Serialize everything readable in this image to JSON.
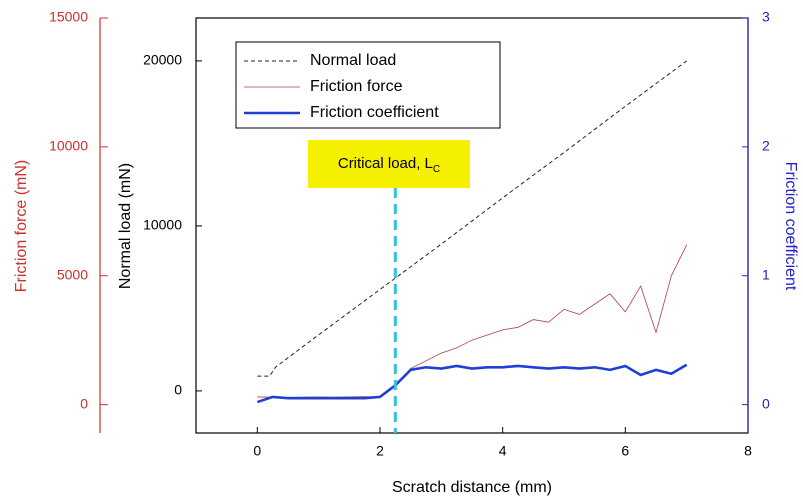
{
  "chart_data": {
    "type": "line",
    "xlabel": "Scratch distance (mm)",
    "ylabel": "Normal load (mN)",
    "y2label": "Friction force (mN)",
    "y3label": "Friction coefficient",
    "xlim": [
      -1,
      8
    ],
    "xticks": [
      0,
      2,
      4,
      6,
      8
    ],
    "ylim": [
      -2550,
      22600
    ],
    "yticks": [
      0,
      10000,
      20000
    ],
    "y2lim": [
      -1100,
      15000
    ],
    "y2ticks": [
      0,
      5000,
      10000,
      15000
    ],
    "y3lim": [
      -0.22,
      3
    ],
    "y3ticks": [
      0,
      1,
      2,
      3
    ],
    "series": [
      {
        "name": "Normal load",
        "color": "#222222",
        "axis": "y",
        "dash": true,
        "x": [
          0,
          0.2,
          0.3,
          1,
          2,
          3,
          4,
          5,
          6,
          7
        ],
        "values": [
          900,
          900,
          1450,
          3400,
          6150,
          8900,
          11700,
          14450,
          17250,
          20000
        ]
      },
      {
        "name": "Friction force",
        "color": "#b0413e",
        "axis": "y2",
        "dash": false,
        "x": [
          0,
          0.25,
          0.5,
          0.75,
          1,
          1.25,
          1.5,
          1.75,
          2,
          2.25,
          2.5,
          2.75,
          3,
          3.25,
          3.5,
          3.75,
          4,
          4.25,
          4.5,
          4.75,
          5,
          5.25,
          5.5,
          5.75,
          6,
          6.25,
          6.5,
          6.75,
          7
        ],
        "values": [
          300,
          290,
          280,
          290,
          300,
          290,
          300,
          310,
          300,
          700,
          1400,
          1700,
          2000,
          2200,
          2500,
          2700,
          2900,
          3000,
          3300,
          3200,
          3700,
          3500,
          3900,
          4300,
          3600,
          4600,
          2800,
          5000,
          6200
        ]
      },
      {
        "name": "Friction coefficient",
        "color": "#1f3fd6",
        "axis": "y3",
        "dash": false,
        "x": [
          0,
          0.25,
          0.5,
          0.75,
          1,
          1.25,
          1.5,
          1.75,
          2,
          2.25,
          2.5,
          2.75,
          3,
          3.25,
          3.5,
          3.75,
          4,
          4.25,
          4.5,
          4.75,
          5,
          5.25,
          5.5,
          5.75,
          6,
          6.25,
          6.5,
          6.75,
          7
        ],
        "values": [
          0.02,
          0.06,
          0.05,
          0.05,
          0.05,
          0.05,
          0.05,
          0.05,
          0.06,
          0.15,
          0.27,
          0.29,
          0.28,
          0.3,
          0.28,
          0.29,
          0.29,
          0.3,
          0.29,
          0.28,
          0.29,
          0.28,
          0.29,
          0.27,
          0.3,
          0.23,
          0.27,
          0.24,
          0.31
        ]
      }
    ],
    "annotation": {
      "text": "Critical load, L",
      "subscript": "C",
      "x": 2.25
    }
  }
}
